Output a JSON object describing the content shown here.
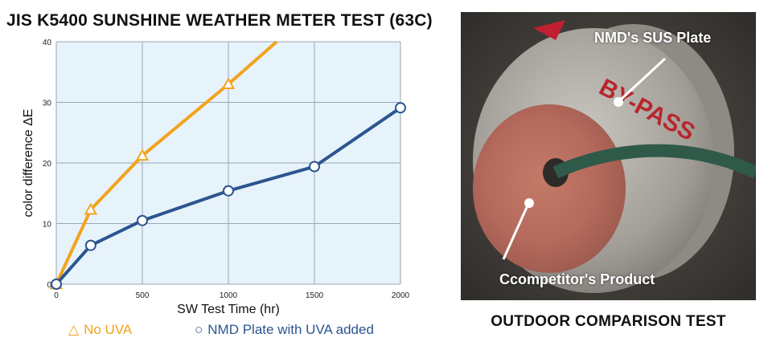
{
  "title": "JIS K5400 SUNSHINE WEATHER METER TEST (63C)",
  "colors": {
    "no_uva": "#f2a31f",
    "nmd": "#2c5590",
    "plot_bg": "#e7f3fb",
    "grid": "#9aa6b2"
  },
  "chart_data": {
    "type": "line",
    "xlabel": "SW Test Time (hr)",
    "ylabel": "color difference ΔE",
    "xlim": [
      0,
      2000
    ],
    "ylim": [
      0,
      40
    ],
    "x_ticks": [
      "0",
      "500",
      "1000",
      "1500",
      "2000"
    ],
    "y_ticks": [
      "0",
      "10",
      "20",
      "30",
      "40"
    ],
    "grid": true,
    "series": [
      {
        "name": "No UVA",
        "marker": "triangle",
        "x": [
          0,
          200,
          500,
          1000,
          1280
        ],
        "y": [
          0,
          12.3,
          21.2,
          33,
          40
        ],
        "marked": [
          true,
          true,
          true,
          true,
          false
        ]
      },
      {
        "name": "NMD Plate with UVA added",
        "marker": "circle",
        "x": [
          0,
          200,
          500,
          1000,
          1500,
          2000
        ],
        "y": [
          0,
          6.4,
          10.5,
          15.4,
          19.4,
          29.1
        ],
        "marked": [
          true,
          true,
          true,
          true,
          true,
          true
        ]
      }
    ]
  },
  "legend": {
    "a_symbol": "△",
    "a_label": "No UVA",
    "b_symbol": "○",
    "b_label": "NMD Plate with UVA added"
  },
  "photo": {
    "label_sus": "NMD's SUS Plate",
    "label_competitor": "Ccompetitor's Product",
    "stamp_text": "BY-PASS",
    "caption": "OUTDOOR COMPARISON TEST"
  }
}
